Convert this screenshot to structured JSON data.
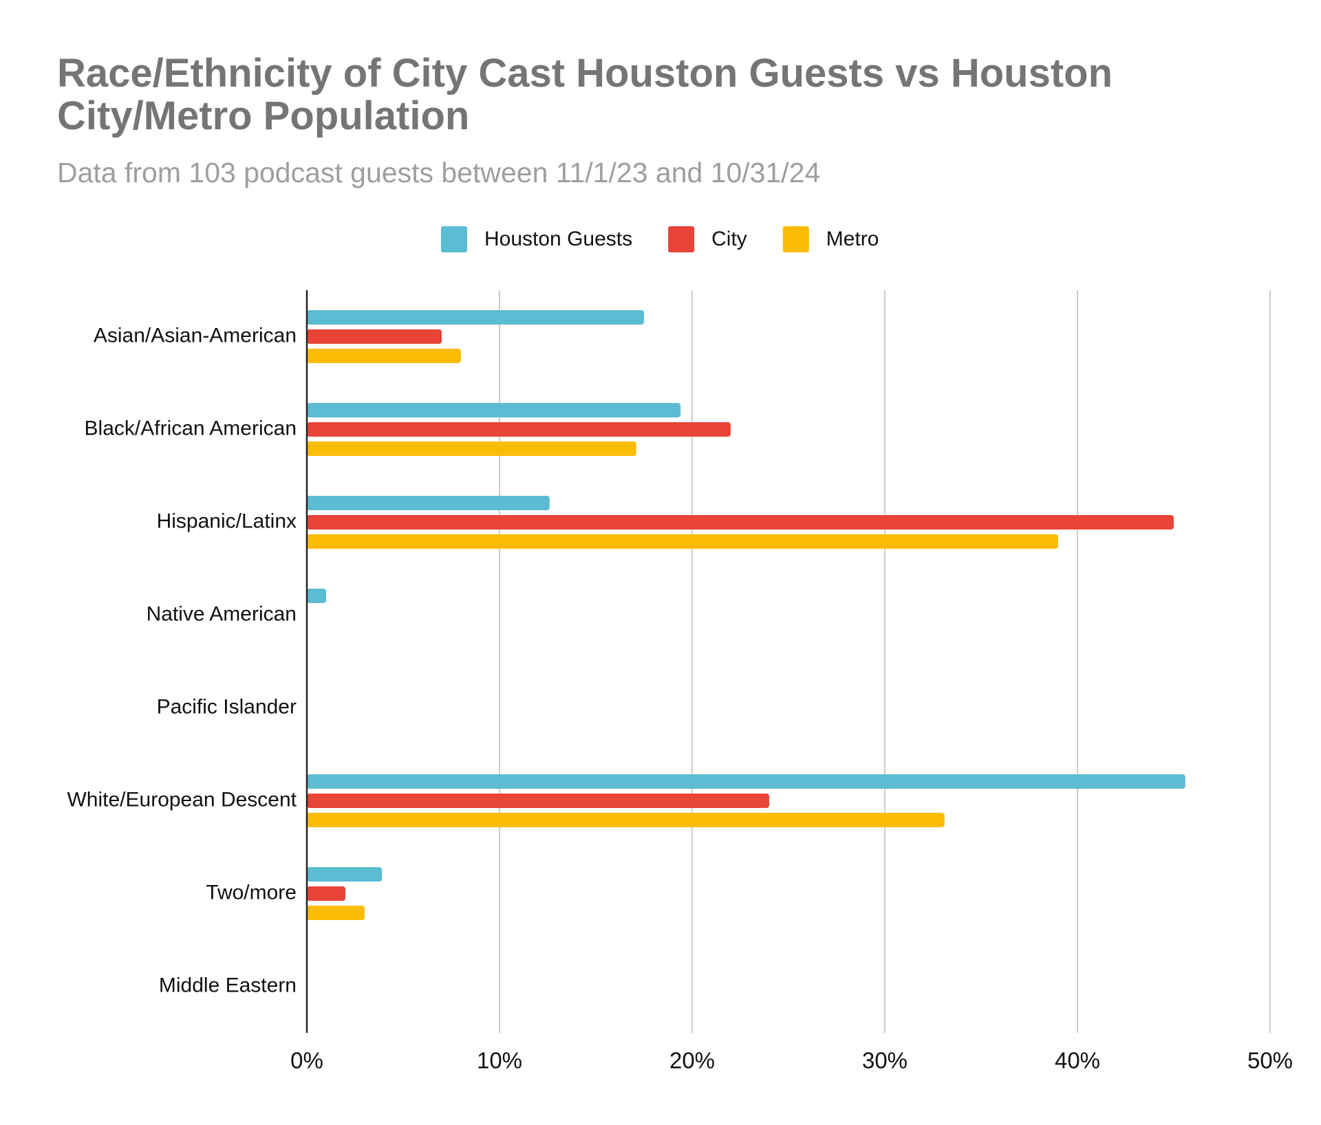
{
  "chart_data": {
    "type": "bar",
    "orientation": "horizontal",
    "title": "Race/Ethnicity of City Cast Houston Guests vs Houston City/Metro Population",
    "subtitle": "Data from 103 podcast guests between 11/1/23 and 10/31/24",
    "categories": [
      "Asian/Asian-American",
      "Black/African American",
      "Hispanic/Latinx",
      "Native American",
      "Pacific Islander",
      "White/European Descent",
      "Two/more",
      "Middle Eastern"
    ],
    "series": [
      {
        "name": "Houston Guests",
        "color": "#5bbcd3",
        "values": [
          17.5,
          19.4,
          12.6,
          1.0,
          0,
          45.6,
          3.9,
          0
        ]
      },
      {
        "name": "City",
        "color": "#e84437",
        "values": [
          7.0,
          22.0,
          45.0,
          0,
          0,
          24.0,
          2.0,
          0
        ]
      },
      {
        "name": "Metro",
        "color": "#fbbc05",
        "values": [
          8.0,
          17.1,
          39.0,
          0,
          0,
          33.1,
          3.0,
          0
        ]
      }
    ],
    "xlim": [
      0,
      50
    ],
    "xticks": [
      {
        "value": 0,
        "label": "0%"
      },
      {
        "value": 10,
        "label": "10%"
      },
      {
        "value": 20,
        "label": "20%"
      },
      {
        "value": 30,
        "label": "30%"
      },
      {
        "value": 40,
        "label": "40%"
      },
      {
        "value": 50,
        "label": "50%"
      }
    ],
    "grid": true,
    "legend": "top"
  }
}
